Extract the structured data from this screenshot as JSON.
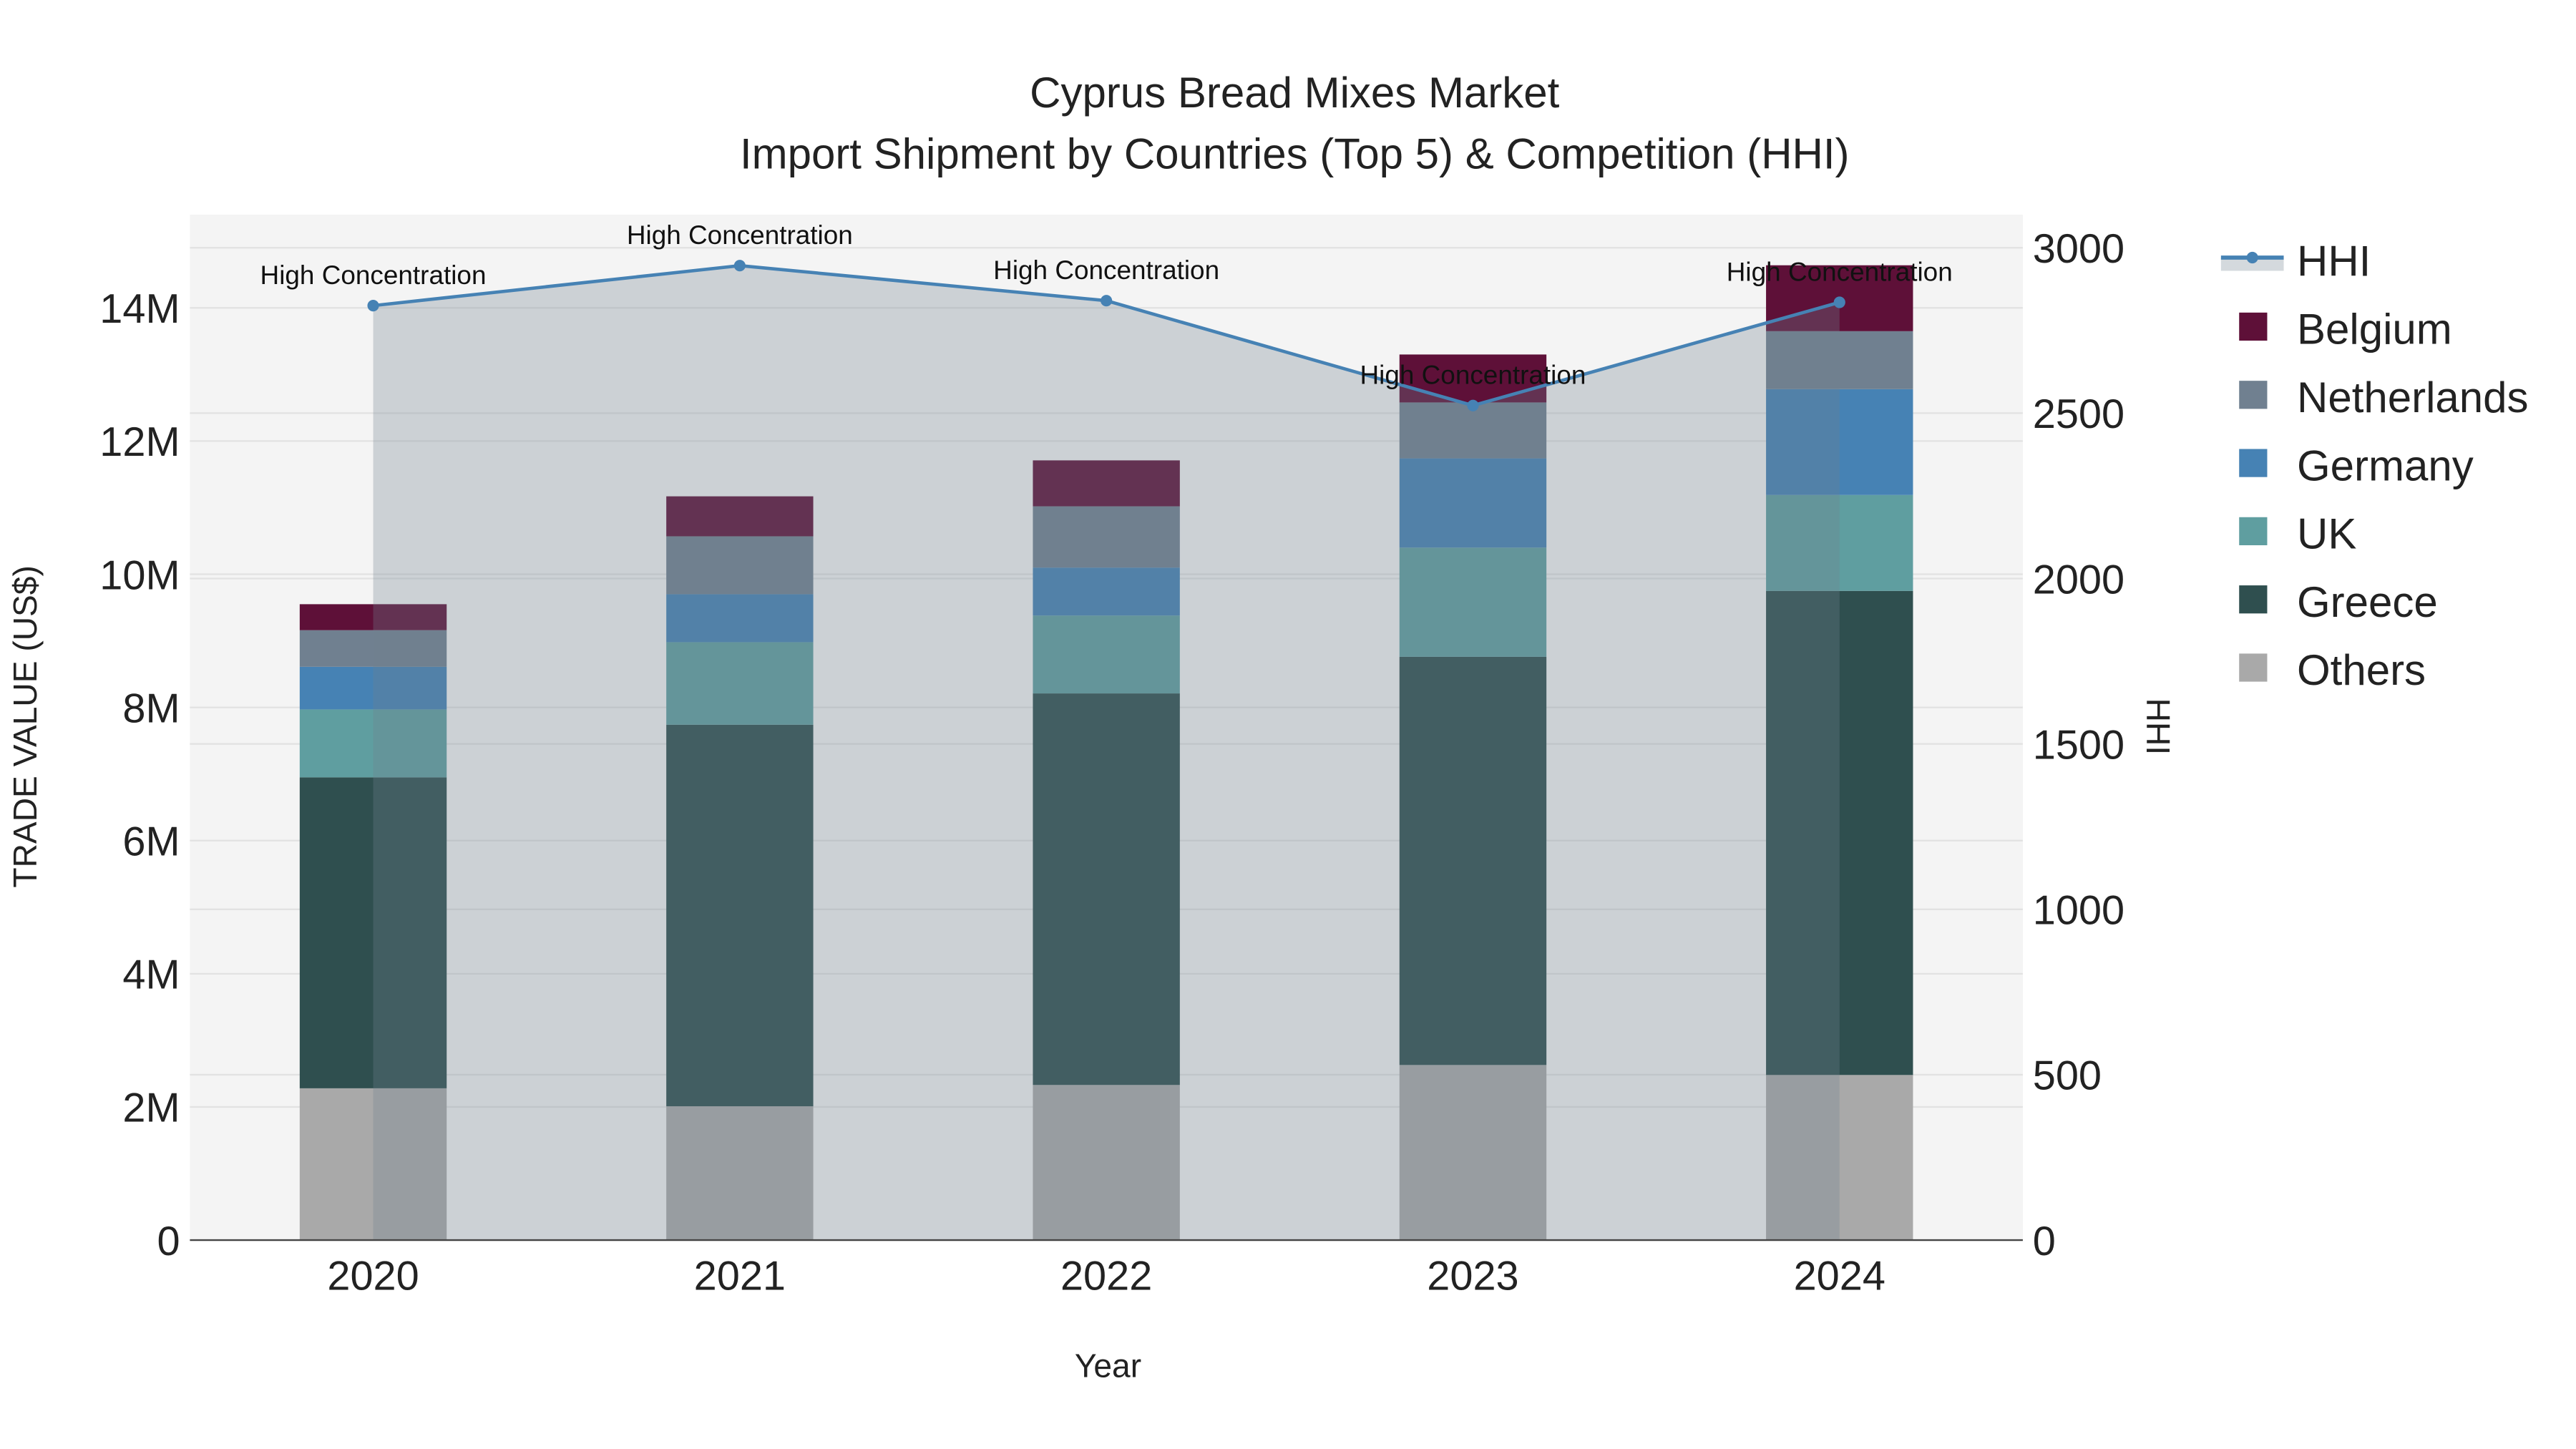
{
  "chart_data": {
    "type": "bar",
    "title_line1": "Cyprus Bread Mixes Market",
    "title_line2": "Import Shipment by Countries (Top 5) & Competition (HHI)",
    "xlabel": "Year",
    "ylabel": "TRADE VALUE (US$)",
    "y2label": "HHI",
    "categories": [
      "2020",
      "2021",
      "2022",
      "2023",
      "2024"
    ],
    "ylim": [
      0,
      15400000
    ],
    "y2lim": [
      0,
      3100
    ],
    "yticks": [
      {
        "v": 0,
        "label": "0"
      },
      {
        "v": 2000000,
        "label": "2M"
      },
      {
        "v": 4000000,
        "label": "4M"
      },
      {
        "v": 6000000,
        "label": "6M"
      },
      {
        "v": 8000000,
        "label": "8M"
      },
      {
        "v": 10000000,
        "label": "10M"
      },
      {
        "v": 12000000,
        "label": "12M"
      },
      {
        "v": 14000000,
        "label": "14M"
      }
    ],
    "y2ticks": [
      {
        "v": 0,
        "label": "0"
      },
      {
        "v": 500,
        "label": "500"
      },
      {
        "v": 1000,
        "label": "1000"
      },
      {
        "v": 1500,
        "label": "1500"
      },
      {
        "v": 2000,
        "label": "2000"
      },
      {
        "v": 2500,
        "label": "2500"
      },
      {
        "v": 3000,
        "label": "3000"
      }
    ],
    "series": [
      {
        "name": "Others",
        "color": "#a9a9a9",
        "values": [
          2280000,
          2010000,
          2330000,
          2630000,
          2480000
        ]
      },
      {
        "name": "Greece",
        "color": "#2f4f4f",
        "values": [
          4670000,
          5730000,
          5880000,
          6130000,
          7270000
        ]
      },
      {
        "name": "UK",
        "color": "#5f9ea0",
        "values": [
          1020000,
          1240000,
          1170000,
          1640000,
          1440000
        ]
      },
      {
        "name": "Germany",
        "color": "#4682b4",
        "values": [
          640000,
          720000,
          720000,
          1340000,
          1590000
        ]
      },
      {
        "name": "Netherlands",
        "color": "#708090",
        "values": [
          550000,
          870000,
          920000,
          840000,
          870000
        ]
      },
      {
        "name": "Belgium",
        "color": "#5e1038",
        "values": [
          390000,
          600000,
          690000,
          720000,
          990000
        ]
      }
    ],
    "hhi": {
      "name": "HHI",
      "color": "#4682b4",
      "values": [
        2825,
        2946,
        2840,
        2523,
        2835
      ],
      "annotations": [
        "High Concentration",
        "High Concentration",
        "High Concentration",
        "High Concentration",
        "High Concentration"
      ]
    },
    "legend_order": [
      "HHI",
      "Belgium",
      "Netherlands",
      "Germany",
      "UK",
      "Greece",
      "Others"
    ],
    "legend_position": "right",
    "grid": true
  }
}
